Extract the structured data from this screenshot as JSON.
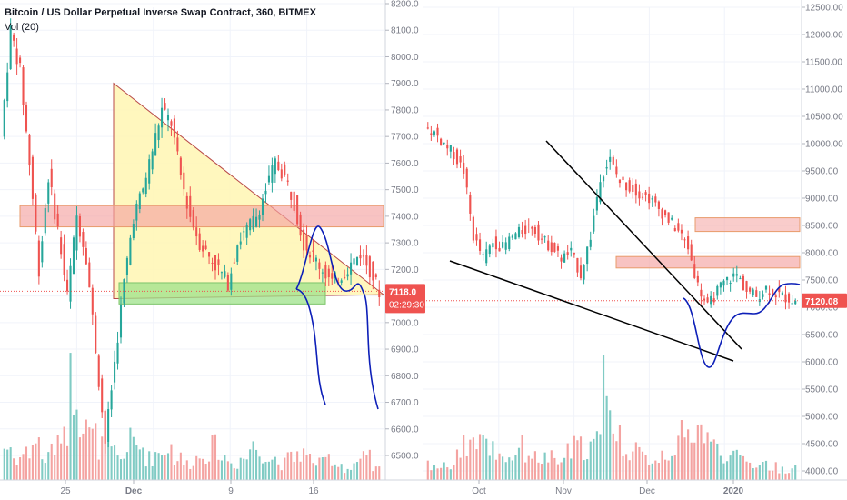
{
  "header": {
    "title": "Bitcoin / US Dollar Perpetual Inverse Swap Contract, 360, BITMEX",
    "volume_label": "Vol (20)"
  },
  "colors": {
    "up": "#26a69a",
    "down": "#ef5350",
    "vol_up": "#80cbc4",
    "vol_down": "#f4a3a1",
    "price_badge": "#ef5350",
    "drawing": "#0d1fb8",
    "resistance_zone": "#f4a3a1",
    "support_zone": "#9ee28a",
    "triangle": "#fff6b3"
  },
  "chart_data": [
    {
      "type": "candlestick",
      "panel": "left",
      "title": "Bitcoin / US Dollar Perpetual Inverse Swap Contract, 360, BITMEX",
      "x_tick_labels": [
        "25",
        "Dec",
        "9",
        "16"
      ],
      "y_tick_labels": [
        "6500.0",
        "6600.0",
        "6700.0",
        "6800.0",
        "6900.0",
        "7000.0",
        "7100.0",
        "7200.0",
        "7300.0",
        "7400.0",
        "7500.0",
        "7600.0",
        "7700.0",
        "7800.0",
        "7900.0",
        "8000.0",
        "8100.0",
        "8200.0"
      ],
      "ylim": [
        6420,
        8220
      ],
      "last_price_label": "7118.0",
      "countdown_label": "02:29:30",
      "last_price": 7118,
      "price_path": [
        7700,
        8100,
        7950,
        7600,
        7200,
        7550,
        7350,
        7100,
        7400,
        7250,
        6900,
        6550,
        6850,
        7150,
        7400,
        7500,
        7650,
        7800,
        7750,
        7550,
        7400,
        7300,
        7250,
        7200,
        7150,
        7300,
        7350,
        7400,
        7500,
        7600,
        7550,
        7450,
        7300,
        7250,
        7200,
        7150,
        7180,
        7220,
        7260,
        7200,
        7118
      ],
      "volume_profile": [
        0.3,
        0.2,
        0.25,
        0.35,
        0.2,
        0.3,
        0.5,
        0.9,
        0.6,
        0.4,
        0.3,
        0.25,
        0.2,
        0.35,
        0.3,
        0.2,
        0.25,
        0.3,
        0.2,
        0.15,
        0.2,
        0.25,
        0.3,
        0.2,
        0.15,
        0.2,
        0.3,
        0.25,
        0.2,
        0.15,
        0.2,
        0.25,
        0.2,
        0.15,
        0.2,
        0.15,
        0.1,
        0.15,
        0.2,
        0.1,
        0.1
      ],
      "resistance_zone": [
        7360,
        7440
      ],
      "support_zone": [
        7070,
        7150
      ],
      "triangle": {
        "apex_price": 7900,
        "base_price": 7090,
        "end_price": 7105
      },
      "projection": "up to ~7350 then down to ~6700"
    },
    {
      "type": "candlestick",
      "panel": "right",
      "x_tick_labels": [
        "Oct",
        "Nov",
        "Dec",
        "2020"
      ],
      "y_tick_labels": [
        "4000.00",
        "4500.00",
        "5000.00",
        "5500.00",
        "6000.00",
        "6500.00",
        "7000.00",
        "7500.00",
        "8000.00",
        "8500.00",
        "9000.00",
        "9500.00",
        "10000.00",
        "10500.00",
        "11000.00",
        "11500.00",
        "12000.00",
        "12500.00"
      ],
      "ylim": [
        3950,
        12600
      ],
      "last_price_label": "7120.08",
      "last_price": 7120,
      "price_path": [
        10300,
        10200,
        10000,
        9800,
        9500,
        8300,
        7900,
        8200,
        8100,
        8300,
        8400,
        8500,
        8250,
        8100,
        7900,
        8000,
        7600,
        8300,
        9400,
        9700,
        9300,
        9200,
        9100,
        9000,
        8800,
        8600,
        8400,
        8100,
        7400,
        7000,
        7300,
        7500,
        7600,
        7300,
        7200,
        7350,
        7250,
        7180,
        7120
      ],
      "volume_profile": [
        0.15,
        0.12,
        0.15,
        0.3,
        0.35,
        0.4,
        0.3,
        0.25,
        0.2,
        0.3,
        0.25,
        0.2,
        0.2,
        0.15,
        0.25,
        0.3,
        0.3,
        0.35,
        0.95,
        0.4,
        0.3,
        0.25,
        0.2,
        0.2,
        0.25,
        0.3,
        0.4,
        0.5,
        0.45,
        0.3,
        0.25,
        0.2,
        0.2,
        0.15,
        0.15,
        0.12,
        0.1,
        0.1,
        0.08
      ],
      "resistance_zone": [
        7720,
        7930
      ],
      "upper_zone": [
        8390,
        8640
      ],
      "wedge": {
        "upper_from": 10000,
        "upper_to": 6200,
        "lower_from": 7500,
        "lower_to": 6000
      },
      "projection": "down to ~5950 then up to ~7450"
    }
  ]
}
